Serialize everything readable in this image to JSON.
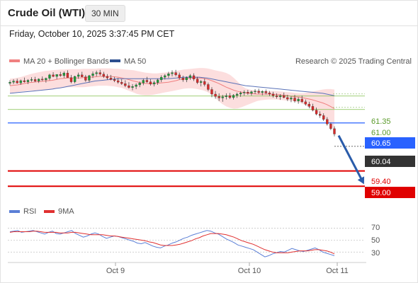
{
  "header": {
    "title": "Crude Oil (WTI)",
    "interval": "30 MIN"
  },
  "timestamp": "Friday, October 10, 2025 3:37:45 PM CET",
  "legend": {
    "bollinger": {
      "label": "MA 20 + Bollinger Bands",
      "color": "#f08080"
    },
    "ma50": {
      "label": "MA 50",
      "color": "#2c4f8f"
    },
    "rsi": {
      "label": "RSI",
      "color": "#5b7fd6"
    },
    "rsi_ma": {
      "label": "9MA",
      "color": "#e03030"
    }
  },
  "credit": "Research © 2025 Trading Central",
  "colors": {
    "up": "#1e9e3a",
    "down": "#d62a2a",
    "resistance": "#7fbf4a",
    "pivot": "#2962ff",
    "support": "#e00000",
    "current": "#333333",
    "arrow": "#2a5caa"
  },
  "chart_data": [
    {
      "type": "candlestick",
      "title": "Crude Oil (WTI)",
      "interval": "30 MIN",
      "ylim": [
        58.6,
        62.1
      ],
      "x_ticks": [
        "Oct 9",
        "Oct 10",
        "Oct 11"
      ],
      "ohlc": [
        [
          61.68,
          61.76,
          61.63,
          61.71
        ],
        [
          61.71,
          61.79,
          61.66,
          61.74
        ],
        [
          61.74,
          61.8,
          61.67,
          61.69
        ],
        [
          61.69,
          61.78,
          61.64,
          61.75
        ],
        [
          61.75,
          61.83,
          61.7,
          61.72
        ],
        [
          61.72,
          61.79,
          61.66,
          61.76
        ],
        [
          61.76,
          61.84,
          61.72,
          61.78
        ],
        [
          61.78,
          61.85,
          61.71,
          61.74
        ],
        [
          61.74,
          61.81,
          61.69,
          61.79
        ],
        [
          61.79,
          61.86,
          61.74,
          61.77
        ],
        [
          61.77,
          61.83,
          61.7,
          61.81
        ],
        [
          61.81,
          61.93,
          61.76,
          61.9
        ],
        [
          61.9,
          61.97,
          61.84,
          61.86
        ],
        [
          61.86,
          61.92,
          61.79,
          61.91
        ],
        [
          61.91,
          61.98,
          61.85,
          61.88
        ],
        [
          61.88,
          61.99,
          61.82,
          61.95
        ],
        [
          61.95,
          62.02,
          61.86,
          61.83
        ],
        [
          61.83,
          61.9,
          61.68,
          61.72
        ],
        [
          61.72,
          61.88,
          61.68,
          61.86
        ],
        [
          61.86,
          61.96,
          61.8,
          61.9
        ],
        [
          61.9,
          61.98,
          61.84,
          61.85
        ],
        [
          61.85,
          61.9,
          61.72,
          61.76
        ],
        [
          61.76,
          61.9,
          61.7,
          61.88
        ],
        [
          61.88,
          61.99,
          61.82,
          61.93
        ],
        [
          61.93,
          62.01,
          61.86,
          61.96
        ],
        [
          61.96,
          62.03,
          61.88,
          61.92
        ],
        [
          61.92,
          61.98,
          61.82,
          61.86
        ],
        [
          61.86,
          61.92,
          61.77,
          61.82
        ],
        [
          61.82,
          61.9,
          61.76,
          61.78
        ],
        [
          61.78,
          61.85,
          61.71,
          61.75
        ],
        [
          61.75,
          61.82,
          61.67,
          61.71
        ],
        [
          61.71,
          61.79,
          61.64,
          61.67
        ],
        [
          61.67,
          61.76,
          61.58,
          61.62
        ],
        [
          61.62,
          61.71,
          61.54,
          61.57
        ],
        [
          61.57,
          61.66,
          61.5,
          61.6
        ],
        [
          61.6,
          61.68,
          61.53,
          61.64
        ],
        [
          61.64,
          61.73,
          61.58,
          61.69
        ],
        [
          61.69,
          61.8,
          61.63,
          61.76
        ],
        [
          61.76,
          61.85,
          61.69,
          61.72
        ],
        [
          61.72,
          61.79,
          61.62,
          61.66
        ],
        [
          61.66,
          61.75,
          61.6,
          61.7
        ],
        [
          61.7,
          61.8,
          61.64,
          61.77
        ],
        [
          61.77,
          61.89,
          61.71,
          61.84
        ],
        [
          61.84,
          61.92,
          61.78,
          61.88
        ],
        [
          61.88,
          61.98,
          61.82,
          61.93
        ],
        [
          61.93,
          62.02,
          61.86,
          61.96
        ],
        [
          61.96,
          62.03,
          61.86,
          61.9
        ],
        [
          61.9,
          61.96,
          61.78,
          61.82
        ],
        [
          61.82,
          61.88,
          61.72,
          61.77
        ],
        [
          61.77,
          61.86,
          61.71,
          61.83
        ],
        [
          61.83,
          61.92,
          61.77,
          61.88
        ],
        [
          61.88,
          61.94,
          61.74,
          61.79
        ],
        [
          61.79,
          61.85,
          61.66,
          61.7
        ],
        [
          61.7,
          61.77,
          61.6,
          61.73
        ],
        [
          61.73,
          61.8,
          61.6,
          61.65
        ],
        [
          61.65,
          61.7,
          61.48,
          61.52
        ],
        [
          61.52,
          61.58,
          61.32,
          61.4
        ],
        [
          61.4,
          61.48,
          61.28,
          61.34
        ],
        [
          61.34,
          61.42,
          61.22,
          61.3
        ],
        [
          61.3,
          61.38,
          61.2,
          61.33
        ],
        [
          61.33,
          61.42,
          61.26,
          61.36
        ],
        [
          61.36,
          61.43,
          61.27,
          61.31
        ],
        [
          61.31,
          61.4,
          61.26,
          61.37
        ],
        [
          61.37,
          61.44,
          61.3,
          61.4
        ],
        [
          61.4,
          61.47,
          61.33,
          61.43
        ],
        [
          61.43,
          61.5,
          61.36,
          61.45
        ],
        [
          61.45,
          61.51,
          61.38,
          61.42
        ],
        [
          61.42,
          61.49,
          61.36,
          61.46
        ],
        [
          61.46,
          61.53,
          61.4,
          61.48
        ],
        [
          61.48,
          61.54,
          61.4,
          61.44
        ],
        [
          61.44,
          61.5,
          61.37,
          61.47
        ],
        [
          61.47,
          61.52,
          61.39,
          61.43
        ],
        [
          61.43,
          61.48,
          61.35,
          61.4
        ],
        [
          61.4,
          61.46,
          61.31,
          61.36
        ],
        [
          61.36,
          61.42,
          61.28,
          61.33
        ],
        [
          61.33,
          61.4,
          61.25,
          61.36
        ],
        [
          61.36,
          61.44,
          61.29,
          61.31
        ],
        [
          61.31,
          61.38,
          61.22,
          61.27
        ],
        [
          61.27,
          61.35,
          61.19,
          61.3
        ],
        [
          61.3,
          61.38,
          61.18,
          61.22
        ],
        [
          61.22,
          61.32,
          61.15,
          61.27
        ],
        [
          61.27,
          61.36,
          61.17,
          61.2
        ],
        [
          61.2,
          61.26,
          61.1,
          61.14
        ],
        [
          61.14,
          61.2,
          61.03,
          61.08
        ],
        [
          61.08,
          61.15,
          60.95,
          60.98
        ],
        [
          60.98,
          61.05,
          60.85,
          60.88
        ],
        [
          60.88,
          60.95,
          60.78,
          60.84
        ],
        [
          60.84,
          60.9,
          60.7,
          60.74
        ],
        [
          60.74,
          60.8,
          60.58,
          60.62
        ],
        [
          60.62,
          60.66,
          60.46,
          60.5
        ],
        [
          60.5,
          60.56,
          60.3,
          60.36
        ]
      ],
      "ma20": [
        61.62,
        61.63,
        61.64,
        61.66,
        61.68,
        61.7,
        61.71,
        61.72,
        61.73,
        61.74,
        61.75,
        61.76,
        61.78,
        61.8,
        61.81,
        61.82,
        61.82,
        61.82,
        61.82,
        61.83,
        61.84,
        61.84,
        61.85,
        61.86,
        61.86,
        61.86,
        61.86,
        61.85,
        61.84,
        61.82,
        61.8,
        61.77,
        61.74,
        61.72,
        61.69,
        61.68,
        61.67,
        61.67,
        61.68,
        61.69,
        61.7,
        61.71,
        61.73,
        61.75,
        61.78,
        61.8,
        61.81,
        61.82,
        61.82,
        61.82,
        61.81,
        61.79,
        61.76,
        61.72,
        61.68,
        61.63,
        61.58,
        61.54,
        61.5,
        61.47,
        61.45,
        61.43,
        61.42,
        61.41,
        61.4,
        61.4,
        61.4,
        61.4,
        61.4,
        61.39,
        61.38,
        61.37,
        61.36,
        61.34,
        61.33,
        61.32,
        61.3,
        61.28,
        61.26,
        61.23,
        61.2,
        61.17,
        61.13,
        61.08,
        61.02
      ],
      "bb_upper": [
        61.8,
        61.81,
        61.83,
        61.85,
        61.88,
        61.91,
        61.94,
        61.96,
        61.98,
        62.0,
        62.01,
        62.02,
        62.03,
        62.04,
        62.04,
        62.05,
        62.05,
        62.05,
        62.05,
        62.06,
        62.06,
        62.06,
        62.06,
        62.07,
        62.07,
        62.07,
        62.07,
        62.06,
        62.06,
        62.05,
        62.04,
        62.03,
        62.02,
        62.0,
        61.98,
        61.96,
        61.95,
        61.94,
        61.94,
        61.95,
        61.96,
        61.97,
        61.98,
        62.0,
        62.02,
        62.04,
        62.05,
        62.06,
        62.07,
        62.08,
        62.08,
        62.07,
        62.05,
        62.02,
        62.0,
        61.98,
        61.95,
        61.9,
        61.82,
        61.72,
        61.62,
        61.55,
        61.52,
        61.5,
        61.49,
        61.48,
        61.48,
        61.48,
        61.48,
        61.48,
        61.47,
        61.46,
        61.45,
        61.44,
        61.43,
        61.42,
        61.42,
        61.44,
        61.46,
        61.48,
        61.5,
        61.52,
        61.53,
        61.53,
        61.52
      ],
      "bb_lower": [
        61.42,
        61.44,
        61.45,
        61.47,
        61.48,
        61.49,
        61.49,
        61.5,
        61.5,
        61.5,
        61.51,
        61.52,
        61.54,
        61.56,
        61.57,
        61.58,
        61.58,
        61.58,
        61.58,
        61.58,
        61.59,
        61.6,
        61.61,
        61.62,
        61.62,
        61.62,
        61.61,
        61.6,
        61.58,
        61.56,
        61.52,
        61.48,
        61.44,
        61.4,
        61.38,
        61.37,
        61.37,
        61.38,
        61.4,
        61.42,
        61.44,
        61.46,
        61.48,
        61.5,
        61.52,
        61.54,
        61.55,
        61.55,
        61.54,
        61.52,
        61.5,
        61.46,
        61.4,
        61.32,
        61.22,
        61.14,
        61.08,
        61.04,
        61.02,
        61.03,
        61.06,
        61.1,
        61.14,
        61.18,
        61.22,
        61.24,
        61.25,
        61.26,
        61.26,
        61.26,
        61.25,
        61.24,
        61.23,
        61.22,
        61.2,
        61.18,
        61.14,
        61.08,
        61.02,
        60.96,
        60.9,
        60.82,
        60.72,
        60.6,
        60.46
      ],
      "ma50": [
        61.42,
        61.43,
        61.44,
        61.45,
        61.46,
        61.47,
        61.48,
        61.49,
        61.5,
        61.51,
        61.52,
        61.53,
        61.55,
        61.56,
        61.58,
        61.6,
        61.62,
        61.64,
        61.66,
        61.68,
        61.7,
        61.72,
        61.74,
        61.75,
        61.76,
        61.77,
        61.78,
        61.79,
        61.8,
        61.8,
        61.8,
        61.8,
        61.8,
        61.8,
        61.8,
        61.8,
        61.8,
        61.8,
        61.8,
        61.8,
        61.8,
        61.8,
        61.81,
        61.82,
        61.83,
        61.84,
        61.84,
        61.84,
        61.84,
        61.84,
        61.83,
        61.82,
        61.8,
        61.78,
        61.76,
        61.74,
        61.72,
        61.7,
        61.68,
        61.66,
        61.64,
        61.62,
        61.61,
        61.6,
        61.59,
        61.58,
        61.57,
        61.56,
        61.55,
        61.54,
        61.53,
        61.52,
        61.51,
        61.5,
        61.49,
        61.48,
        61.47,
        61.46,
        61.45,
        61.44,
        61.43,
        61.42,
        61.4,
        61.38,
        61.36
      ],
      "levels": [
        {
          "value": "61.35",
          "role": "resistance"
        },
        {
          "value": "61.00",
          "role": "resistance"
        },
        {
          "value": "60.65",
          "role": "pivot"
        },
        {
          "value": "60.04",
          "role": "current"
        },
        {
          "value": "59.40",
          "role": "support"
        },
        {
          "value": "59.00",
          "role": "support"
        }
      ],
      "forecast_arrow": {
        "from": 60.32,
        "to": 59.12
      }
    },
    {
      "type": "line",
      "title": "RSI",
      "ylim": [
        15,
        80
      ],
      "y_ticks": [
        70,
        50,
        30
      ],
      "series": [
        {
          "name": "RSI",
          "values": [
            64,
            65,
            66,
            63,
            64,
            65,
            66,
            64,
            62,
            60,
            63,
            65,
            61,
            60,
            62,
            64,
            66,
            61,
            58,
            55,
            57,
            60,
            62,
            60,
            56,
            53,
            55,
            57,
            56,
            54,
            52,
            50,
            48,
            45,
            44,
            46,
            43,
            40,
            38,
            37,
            40,
            42,
            45,
            47,
            50,
            53,
            55,
            58,
            60,
            62,
            64,
            66,
            65,
            62,
            60,
            56,
            52,
            49,
            46,
            42,
            40,
            38,
            36,
            34,
            30,
            26,
            22,
            24,
            27,
            29,
            31,
            30,
            33,
            36,
            34,
            32,
            31,
            33,
            35,
            37,
            34,
            30,
            28,
            26,
            24
          ]
        },
        {
          "name": "9MA",
          "values": [
            63,
            64,
            64,
            64,
            64,
            64,
            65,
            65,
            64,
            63,
            63,
            63,
            63,
            62,
            62,
            62,
            63,
            63,
            62,
            61,
            60,
            59,
            59,
            59,
            59,
            58,
            57,
            57,
            56,
            55,
            54,
            53,
            52,
            51,
            50,
            49,
            47,
            46,
            44,
            42,
            41,
            41,
            41,
            42,
            43,
            45,
            47,
            49,
            52,
            54,
            57,
            59,
            61,
            61,
            61,
            60,
            59,
            57,
            55,
            52,
            49,
            47,
            45,
            43,
            40,
            37,
            34,
            32,
            30,
            29,
            29,
            29,
            29,
            30,
            31,
            32,
            32,
            32,
            33,
            34,
            34,
            33,
            32,
            30,
            27
          ]
        }
      ]
    }
  ]
}
